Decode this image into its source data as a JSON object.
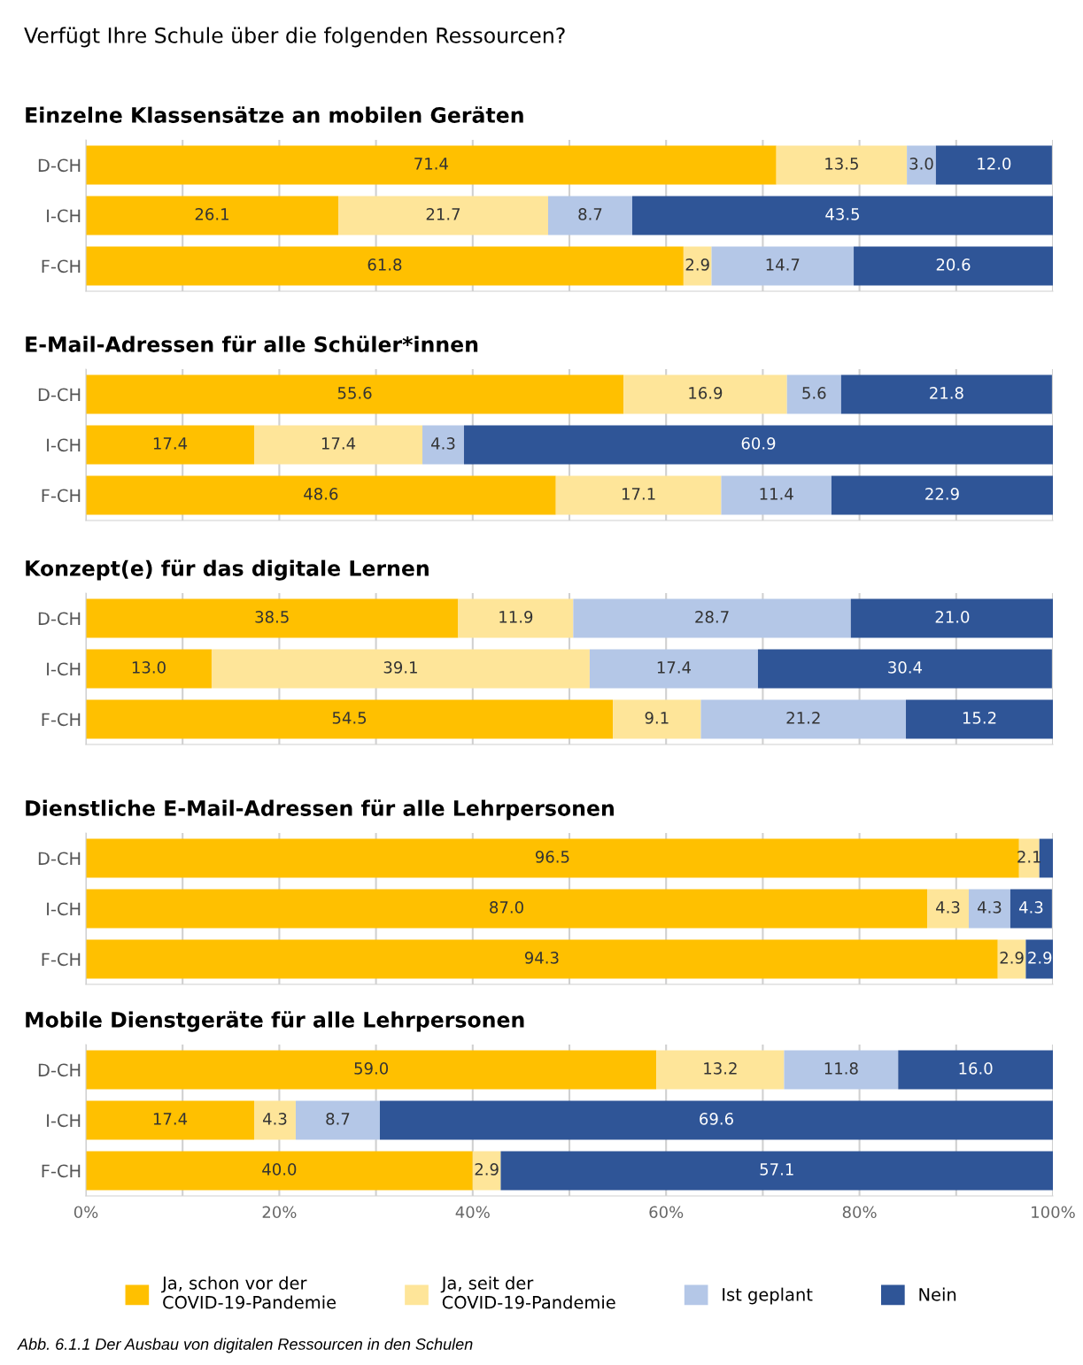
{
  "chart_data": [
    {
      "type": "bar",
      "orientation": "horizontal",
      "stacked": true,
      "title": "Einzelne Klassensätze an mobilen Geräten",
      "annotations": [
        "Verfügt Ihre Schule über die folgenden Ressourcen?"
      ],
      "categories": [
        "D-CH",
        "I-CH",
        "F-CH"
      ],
      "xlim": [
        0,
        100
      ],
      "xticks": [
        {
          "value": 0,
          "label": null
        },
        {
          "value": 10,
          "label": null
        },
        {
          "value": 20,
          "label": null
        },
        {
          "value": 30,
          "label": null
        },
        {
          "value": 40,
          "label": null
        },
        {
          "value": 50,
          "label": null
        },
        {
          "value": 60,
          "label": null
        },
        {
          "value": 70,
          "label": null
        },
        {
          "value": 80,
          "label": null
        },
        {
          "value": 90,
          "label": null
        },
        {
          "value": 100,
          "label": null
        }
      ],
      "grid": "x",
      "tick_labels": "y",
      "series": [
        {
          "color": "#ffc000",
          "values": [
            71.4,
            26.1,
            61.8
          ],
          "value_labels": [
            "71.4",
            "26.1",
            "61.8"
          ]
        },
        {
          "color": "#fee599",
          "values": [
            13.5,
            21.7,
            2.9
          ],
          "value_labels": [
            "13.5",
            "21.7",
            "2.9"
          ]
        },
        {
          "color": "#b4c7e7",
          "values": [
            3.0,
            8.7,
            14.7
          ],
          "value_labels": [
            "3.0",
            "8.7",
            "14.7"
          ]
        },
        {
          "color": "#2f5597",
          "values": [
            12.0,
            43.5,
            20.6
          ],
          "value_labels": [
            "12.0",
            "43.5",
            "20.6"
          ]
        }
      ]
    },
    {
      "type": "bar",
      "orientation": "horizontal",
      "stacked": true,
      "title": "E-Mail-Adressen für alle Schüler*innen",
      "categories": [
        "D-CH",
        "I-CH",
        "F-CH"
      ],
      "xlim": [
        0,
        100
      ],
      "xticks": [
        {
          "value": 0,
          "label": null
        },
        {
          "value": 10,
          "label": null
        },
        {
          "value": 20,
          "label": null
        },
        {
          "value": 30,
          "label": null
        },
        {
          "value": 40,
          "label": null
        },
        {
          "value": 50,
          "label": null
        },
        {
          "value": 60,
          "label": null
        },
        {
          "value": 70,
          "label": null
        },
        {
          "value": 80,
          "label": null
        },
        {
          "value": 90,
          "label": null
        },
        {
          "value": 100,
          "label": null
        }
      ],
      "grid": "x",
      "tick_labels": "y",
      "series": [
        {
          "color": "#ffc000",
          "values": [
            55.6,
            17.4,
            48.6
          ],
          "value_labels": [
            "55.6",
            "17.4",
            "48.6"
          ]
        },
        {
          "color": "#fee599",
          "values": [
            16.9,
            17.4,
            17.1
          ],
          "value_labels": [
            "16.9",
            "17.4",
            "17.1"
          ]
        },
        {
          "color": "#b4c7e7",
          "values": [
            5.6,
            4.3,
            11.4
          ],
          "value_labels": [
            "5.6",
            "4.3",
            "11.4"
          ]
        },
        {
          "color": "#2f5597",
          "values": [
            21.8,
            60.9,
            22.9
          ],
          "value_labels": [
            "21.8",
            "60.9",
            "22.9"
          ]
        }
      ]
    },
    {
      "type": "bar",
      "orientation": "horizontal",
      "stacked": true,
      "title": "Konzept(e) für das digitale Lernen",
      "categories": [
        "D-CH",
        "I-CH",
        "F-CH"
      ],
      "xlim": [
        0,
        100
      ],
      "xticks": [
        {
          "value": 0,
          "label": null
        },
        {
          "value": 10,
          "label": null
        },
        {
          "value": 20,
          "label": null
        },
        {
          "value": 30,
          "label": null
        },
        {
          "value": 40,
          "label": null
        },
        {
          "value": 50,
          "label": null
        },
        {
          "value": 60,
          "label": null
        },
        {
          "value": 70,
          "label": null
        },
        {
          "value": 80,
          "label": null
        },
        {
          "value": 90,
          "label": null
        },
        {
          "value": 100,
          "label": null
        }
      ],
      "grid": "x",
      "tick_labels": "y",
      "series": [
        {
          "color": "#ffc000",
          "values": [
            38.5,
            13.0,
            54.5
          ],
          "value_labels": [
            "38.5",
            "13.0",
            "54.5"
          ]
        },
        {
          "color": "#fee599",
          "values": [
            11.9,
            39.1,
            9.1
          ],
          "value_labels": [
            "11.9",
            "39.1",
            "9.1"
          ]
        },
        {
          "color": "#b4c7e7",
          "values": [
            28.7,
            17.4,
            21.2
          ],
          "value_labels": [
            "28.7",
            "17.4",
            "21.2"
          ]
        },
        {
          "color": "#2f5597",
          "values": [
            21.0,
            30.4,
            15.2
          ],
          "value_labels": [
            "21.0",
            "30.4",
            "15.2"
          ]
        }
      ]
    },
    {
      "type": "bar",
      "orientation": "horizontal",
      "stacked": true,
      "title": "Dienstliche E-Mail-Adressen für alle Lehrpersonen",
      "categories": [
        "D-CH",
        "I-CH",
        "F-CH"
      ],
      "xlim": [
        0,
        100
      ],
      "xticks": [
        {
          "value": 0,
          "label": null
        },
        {
          "value": 10,
          "label": null
        },
        {
          "value": 20,
          "label": null
        },
        {
          "value": 30,
          "label": null
        },
        {
          "value": 40,
          "label": null
        },
        {
          "value": 50,
          "label": null
        },
        {
          "value": 60,
          "label": null
        },
        {
          "value": 70,
          "label": null
        },
        {
          "value": 80,
          "label": null
        },
        {
          "value": 90,
          "label": null
        },
        {
          "value": 100,
          "label": null
        }
      ],
      "grid": "x",
      "tick_labels": "y",
      "series": [
        {
          "color": "#ffc000",
          "values": [
            96.5,
            87.0,
            94.3
          ],
          "value_labels": [
            "96.5",
            "87.0",
            "94.3"
          ]
        },
        {
          "color": "#fee599",
          "values": [
            2.1,
            4.3,
            2.9
          ],
          "value_labels": [
            "2.1",
            "4.3",
            "2.9"
          ]
        },
        {
          "color": "#b4c7e7",
          "values": [
            0,
            4.3,
            0
          ],
          "value_labels": [
            null,
            "4.3",
            null
          ]
        },
        {
          "color": "#2f5597",
          "values": [
            1.4,
            4.3,
            2.9
          ],
          "value_labels": [
            null,
            "4.3",
            "2.9"
          ]
        }
      ]
    },
    {
      "type": "bar",
      "orientation": "horizontal",
      "stacked": true,
      "title": "Mobile Dienstgeräte für alle Lehrpersonen",
      "annotations": [
        "Abb. 6.1.1 Der Ausbau von digitalen Ressourcen in den Schulen"
      ],
      "categories": [
        "D-CH",
        "I-CH",
        "F-CH"
      ],
      "xlim": [
        0,
        100
      ],
      "xticks": [
        {
          "value": 0,
          "label": "0%"
        },
        {
          "value": 10,
          "label": null
        },
        {
          "value": 20,
          "label": "20%"
        },
        {
          "value": 30,
          "label": null
        },
        {
          "value": 40,
          "label": "40%"
        },
        {
          "value": 50,
          "label": null
        },
        {
          "value": 60,
          "label": "60%"
        },
        {
          "value": 70,
          "label": null
        },
        {
          "value": 80,
          "label": "80%"
        },
        {
          "value": 90,
          "label": null
        },
        {
          "value": 100,
          "label": "100%"
        }
      ],
      "grid": "x",
      "legend": "bottom",
      "series": [
        {
          "name": "Ja, schon vor der\nCOVID-19-Pandemie",
          "color": "#ffc000",
          "values": [
            59.0,
            17.4,
            40.0
          ],
          "value_labels": [
            "59.0",
            "17.4",
            "40.0"
          ]
        },
        {
          "name": "Ja, seit der\nCOVID-19-Pandemie",
          "color": "#fee599",
          "values": [
            13.2,
            4.3,
            2.9
          ],
          "value_labels": [
            "13.2",
            "4.3",
            "2.9"
          ]
        },
        {
          "name": "Ist geplant",
          "color": "#b4c7e7",
          "values": [
            11.8,
            8.7,
            0
          ],
          "value_labels": [
            "11.8",
            "8.7",
            null
          ]
        },
        {
          "name": "Nein",
          "color": "#2f5597",
          "values": [
            16.0,
            69.6,
            57.1
          ],
          "value_labels": [
            "16.0",
            "69.6",
            "57.1"
          ]
        }
      ]
    }
  ]
}
